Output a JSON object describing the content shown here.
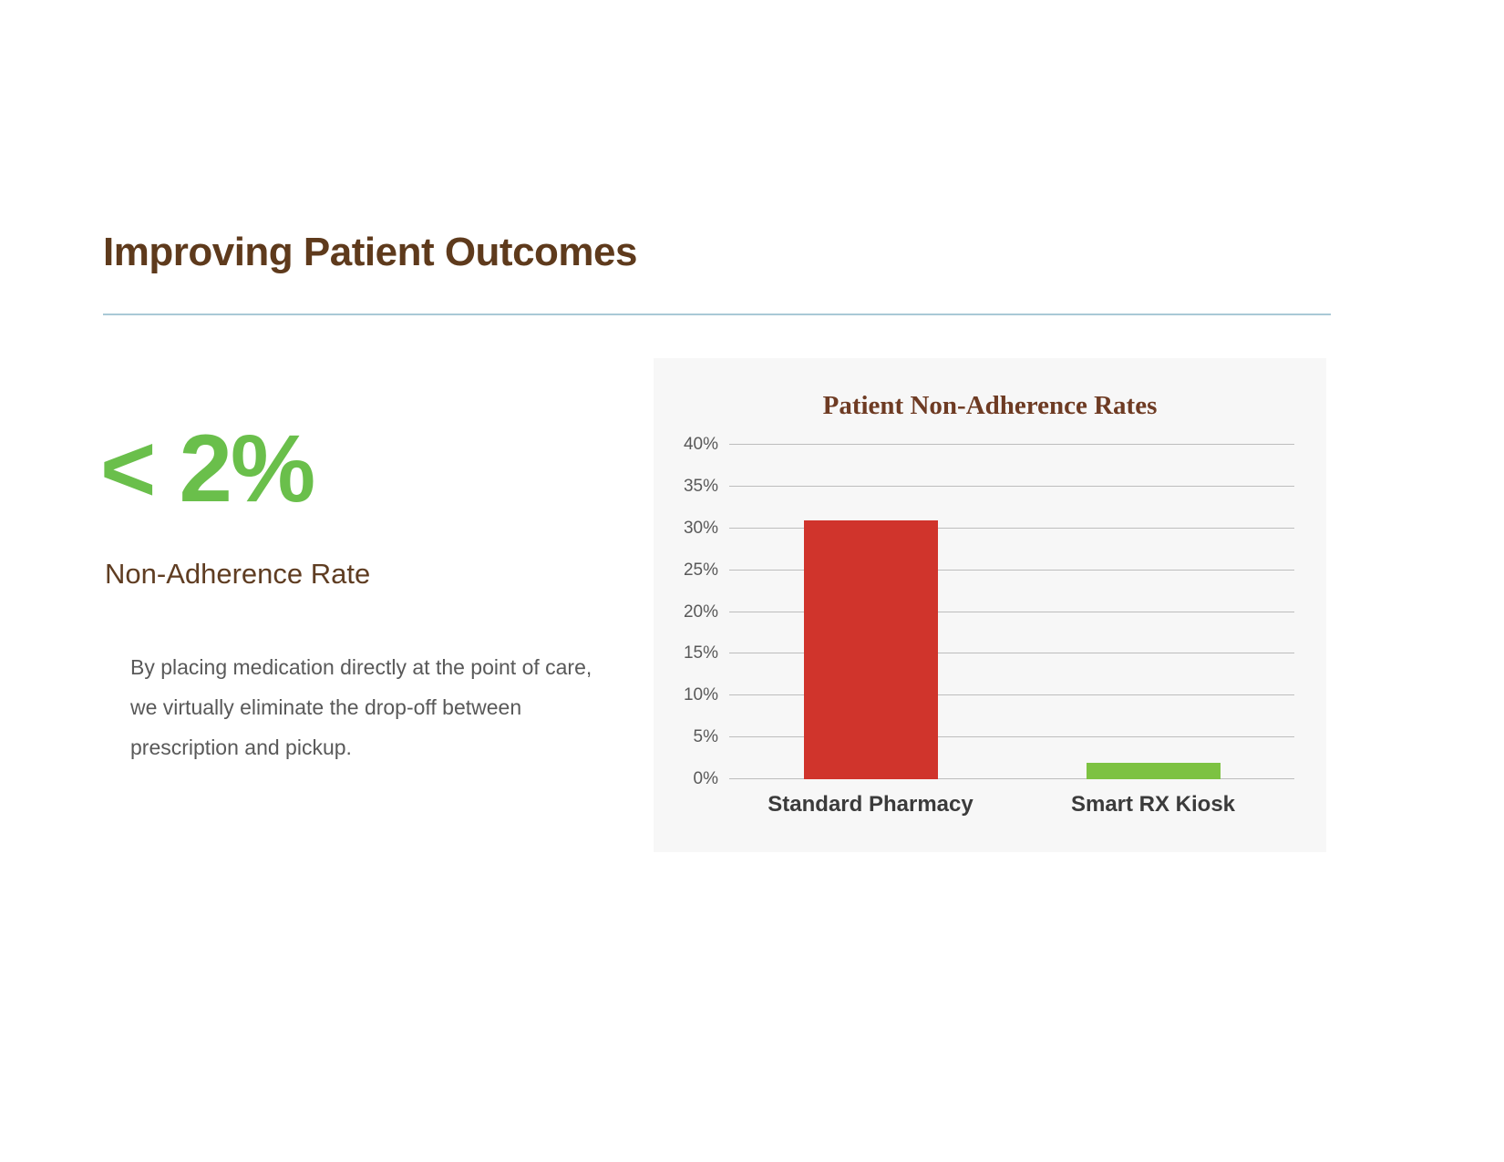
{
  "slide": {
    "title": "Improving Patient Outcomes",
    "stat_value": "< 2%",
    "stat_label": "Non-Adherence Rate",
    "paragraph": "By placing medication directly at the point of care, we virtually eliminate the drop-off between prescription and pickup."
  },
  "colors": {
    "title_brown": "#5e3a1c",
    "divider_blue": "#a9c9d6",
    "stat_green": "#6abf4b",
    "stat_label_brown": "#5f3d22",
    "paragraph_gray": "#595959",
    "chart_title_brown": "#6e3b23",
    "panel_background": "#f7f7f7",
    "bar_red": "#d0342c",
    "bar_green": "#7dc242"
  },
  "chart_data": {
    "type": "bar",
    "title": "Patient Non-Adherence Rates",
    "categories": [
      "Standard Pharmacy",
      "Smart RX Kiosk"
    ],
    "values": [
      31,
      2
    ],
    "bar_colors": [
      "#d0342c",
      "#7dc242"
    ],
    "xlabel": "",
    "ylabel": "",
    "ylim": [
      0,
      40
    ],
    "yticks": [
      0,
      5,
      10,
      15,
      20,
      25,
      30,
      35,
      40
    ],
    "ytick_suffix": "%",
    "grid": true,
    "legend": false
  }
}
